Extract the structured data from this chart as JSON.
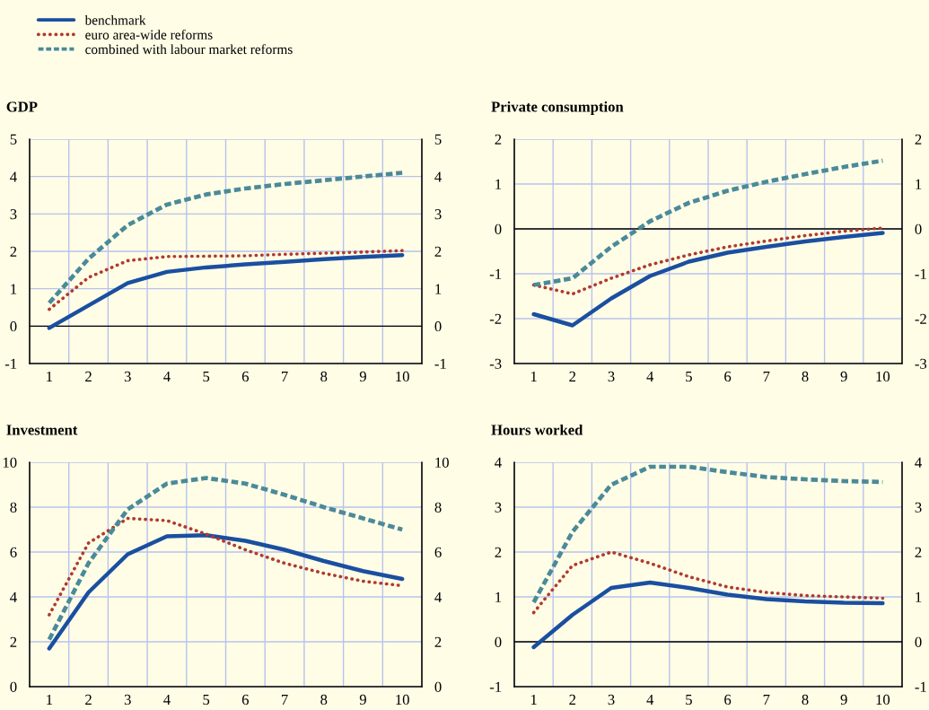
{
  "chart_data": [
    {
      "type": "line",
      "title": "GDP",
      "legend": "top left",
      "grid": true,
      "categories": [
        "1",
        "2",
        "3",
        "4",
        "5",
        "6",
        "7",
        "8",
        "9",
        "10"
      ],
      "ylim": [
        -1,
        5
      ],
      "yticks": [
        -1,
        0,
        1,
        2,
        3,
        4,
        5
      ],
      "y2lim": [
        -1,
        5
      ],
      "y2ticks": [
        -1,
        0,
        1,
        2,
        3,
        4,
        5
      ],
      "ref_lines": [
        {
          "axis": "y",
          "value": 0,
          "color": "#000000"
        }
      ],
      "series": [
        {
          "name": "benchmark",
          "color": "#1a4fa0",
          "line_style": "solid",
          "values": [
            -0.05,
            0.55,
            1.15,
            1.45,
            1.57,
            1.65,
            1.72,
            1.79,
            1.85,
            1.9
          ]
        },
        {
          "name": "euro area-wide reforms",
          "color": "#b03a2e",
          "line_style": "dotted",
          "values": [
            0.45,
            1.3,
            1.75,
            1.86,
            1.87,
            1.88,
            1.92,
            1.95,
            1.98,
            2.02
          ]
        },
        {
          "name": "combined with labour market reforms",
          "color": "#4a8a9a",
          "line_style": "dashed",
          "values": [
            0.62,
            1.8,
            2.7,
            3.25,
            3.52,
            3.68,
            3.8,
            3.9,
            4.0,
            4.1
          ]
        }
      ]
    },
    {
      "type": "line",
      "title": "Private consumption",
      "grid": true,
      "categories": [
        "1",
        "2",
        "3",
        "4",
        "5",
        "6",
        "7",
        "8",
        "9",
        "10"
      ],
      "ylim": [
        -3,
        2
      ],
      "yticks": [
        -3,
        -2,
        -1,
        0,
        1,
        2
      ],
      "y2lim": [
        -3,
        2
      ],
      "y2ticks": [
        -3,
        -2,
        -1,
        0,
        1,
        2
      ],
      "ref_lines": [
        {
          "axis": "y",
          "value": 0,
          "color": "#000000"
        }
      ],
      "series": [
        {
          "color": "#1a4fa0",
          "line_style": "solid",
          "values": [
            -1.9,
            -2.15,
            -1.55,
            -1.05,
            -0.73,
            -0.53,
            -0.4,
            -0.28,
            -0.18,
            -0.09
          ]
        },
        {
          "color": "#b03a2e",
          "line_style": "dotted",
          "values": [
            -1.25,
            -1.45,
            -1.1,
            -0.8,
            -0.58,
            -0.4,
            -0.27,
            -0.15,
            -0.05,
            0.02
          ]
        },
        {
          "color": "#4a8a9a",
          "line_style": "dashed",
          "values": [
            -1.25,
            -1.1,
            -0.4,
            0.17,
            0.58,
            0.85,
            1.05,
            1.22,
            1.38,
            1.52
          ]
        }
      ]
    },
    {
      "type": "line",
      "title": "Investment",
      "grid": true,
      "categories": [
        "1",
        "2",
        "3",
        "4",
        "5",
        "6",
        "7",
        "8",
        "9",
        "10"
      ],
      "ylim": [
        0,
        10
      ],
      "yticks": [
        0,
        2,
        4,
        6,
        8,
        10
      ],
      "y2lim": [
        0,
        10
      ],
      "y2ticks": [
        0,
        2,
        4,
        6,
        8,
        10
      ],
      "series": [
        {
          "color": "#1a4fa0",
          "line_style": "solid",
          "values": [
            1.7,
            4.2,
            5.9,
            6.7,
            6.75,
            6.5,
            6.1,
            5.6,
            5.15,
            4.8
          ]
        },
        {
          "color": "#b03a2e",
          "line_style": "dotted",
          "values": [
            3.2,
            6.4,
            7.5,
            7.4,
            6.8,
            6.1,
            5.5,
            5.05,
            4.7,
            4.5
          ]
        },
        {
          "color": "#4a8a9a",
          "line_style": "dashed",
          "values": [
            2.1,
            5.5,
            7.9,
            9.05,
            9.3,
            9.05,
            8.55,
            8.0,
            7.5,
            7.0
          ]
        }
      ]
    },
    {
      "type": "line",
      "title": "Hours worked",
      "grid": true,
      "categories": [
        "1",
        "2",
        "3",
        "4",
        "5",
        "6",
        "7",
        "8",
        "9",
        "10"
      ],
      "ylim": [
        -1,
        4
      ],
      "yticks": [
        -1,
        0,
        1,
        2,
        3,
        4
      ],
      "y2lim": [
        -1,
        4
      ],
      "y2ticks": [
        -1,
        0,
        1,
        2,
        3,
        4
      ],
      "ref_lines": [
        {
          "axis": "y",
          "value": 0,
          "color": "#000000"
        }
      ],
      "series": [
        {
          "color": "#1a4fa0",
          "line_style": "solid",
          "values": [
            -0.12,
            0.6,
            1.2,
            1.32,
            1.2,
            1.05,
            0.95,
            0.9,
            0.87,
            0.86
          ]
        },
        {
          "color": "#b03a2e",
          "line_style": "dotted",
          "values": [
            0.65,
            1.7,
            2.0,
            1.75,
            1.45,
            1.22,
            1.1,
            1.03,
            1.0,
            0.97
          ]
        },
        {
          "color": "#4a8a9a",
          "line_style": "dashed",
          "values": [
            0.88,
            2.45,
            3.5,
            3.9,
            3.9,
            3.78,
            3.67,
            3.62,
            3.58,
            3.56
          ]
        }
      ]
    }
  ]
}
